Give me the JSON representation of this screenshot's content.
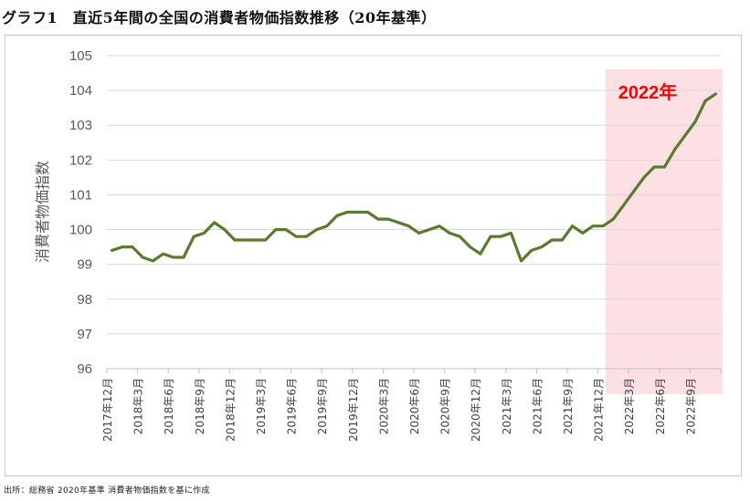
{
  "title": "グラフ1　直近5年間の全国の消費者物価指数推移（20年基準）",
  "source": "出所：総務省 2020年基準 消費者物価指数を基に作成",
  "colors": {
    "line": "#5a7a2e",
    "highlight_fill": "#fde0e4",
    "highlight_text": "#ff0000",
    "grid": "#d9d9d9"
  },
  "chart_data": {
    "type": "line",
    "title": "",
    "xlabel": "",
    "ylabel": "消費者物価指数",
    "ylim": [
      96,
      105
    ],
    "yticks": [
      96,
      97,
      98,
      99,
      100,
      101,
      102,
      103,
      104,
      105
    ],
    "grid": true,
    "x": [
      "2017年12月",
      "2018年1月",
      "2018年2月",
      "2018年3月",
      "2018年4月",
      "2018年5月",
      "2018年6月",
      "2018年7月",
      "2018年8月",
      "2018年9月",
      "2018年10月",
      "2018年11月",
      "2018年12月",
      "2019年1月",
      "2019年2月",
      "2019年3月",
      "2019年4月",
      "2019年5月",
      "2019年6月",
      "2019年7月",
      "2019年8月",
      "2019年9月",
      "2019年10月",
      "2019年11月",
      "2019年12月",
      "2020年1月",
      "2020年2月",
      "2020年3月",
      "2020年4月",
      "2020年5月",
      "2020年6月",
      "2020年7月",
      "2020年8月",
      "2020年9月",
      "2020年10月",
      "2020年11月",
      "2020年12月",
      "2021年1月",
      "2021年2月",
      "2021年3月",
      "2021年4月",
      "2021年5月",
      "2021年6月",
      "2021年7月",
      "2021年8月",
      "2021年9月",
      "2021年10月",
      "2021年11月",
      "2021年12月",
      "2022年1月",
      "2022年2月",
      "2022年3月",
      "2022年4月",
      "2022年5月",
      "2022年6月",
      "2022年7月",
      "2022年8月",
      "2022年9月",
      "2022年10月",
      "2022年11月"
    ],
    "tick_labels": [
      "2017年12月",
      "2018年3月",
      "2018年6月",
      "2018年9月",
      "2018年12月",
      "2019年3月",
      "2019年6月",
      "2019年9月",
      "2019年12月",
      "2020年3月",
      "2020年6月",
      "2020年9月",
      "2020年12月",
      "2021年3月",
      "2021年6月",
      "2021年9月",
      "2021年12月",
      "2022年3月",
      "2022年6月",
      "2022年9月"
    ],
    "series": [
      {
        "values": [
          99.4,
          99.5,
          99.5,
          99.2,
          99.1,
          99.3,
          99.2,
          99.2,
          99.8,
          99.9,
          100.2,
          100.0,
          99.7,
          99.7,
          99.7,
          99.7,
          100.0,
          100.0,
          99.8,
          99.8,
          100.0,
          100.1,
          100.4,
          100.5,
          100.5,
          100.5,
          100.3,
          100.3,
          100.2,
          100.1,
          99.9,
          100.0,
          100.1,
          99.9,
          99.8,
          99.5,
          99.3,
          99.8,
          99.8,
          99.9,
          99.1,
          99.4,
          99.5,
          99.7,
          99.7,
          100.1,
          99.9,
          100.1,
          100.1,
          100.3,
          100.7,
          101.1,
          101.5,
          101.8,
          101.8,
          102.3,
          102.7,
          103.1,
          103.7,
          103.9
        ]
      }
    ],
    "annotations": [
      {
        "text": "2022年",
        "from": "2022年1月",
        "to": "2022年11月"
      }
    ]
  }
}
